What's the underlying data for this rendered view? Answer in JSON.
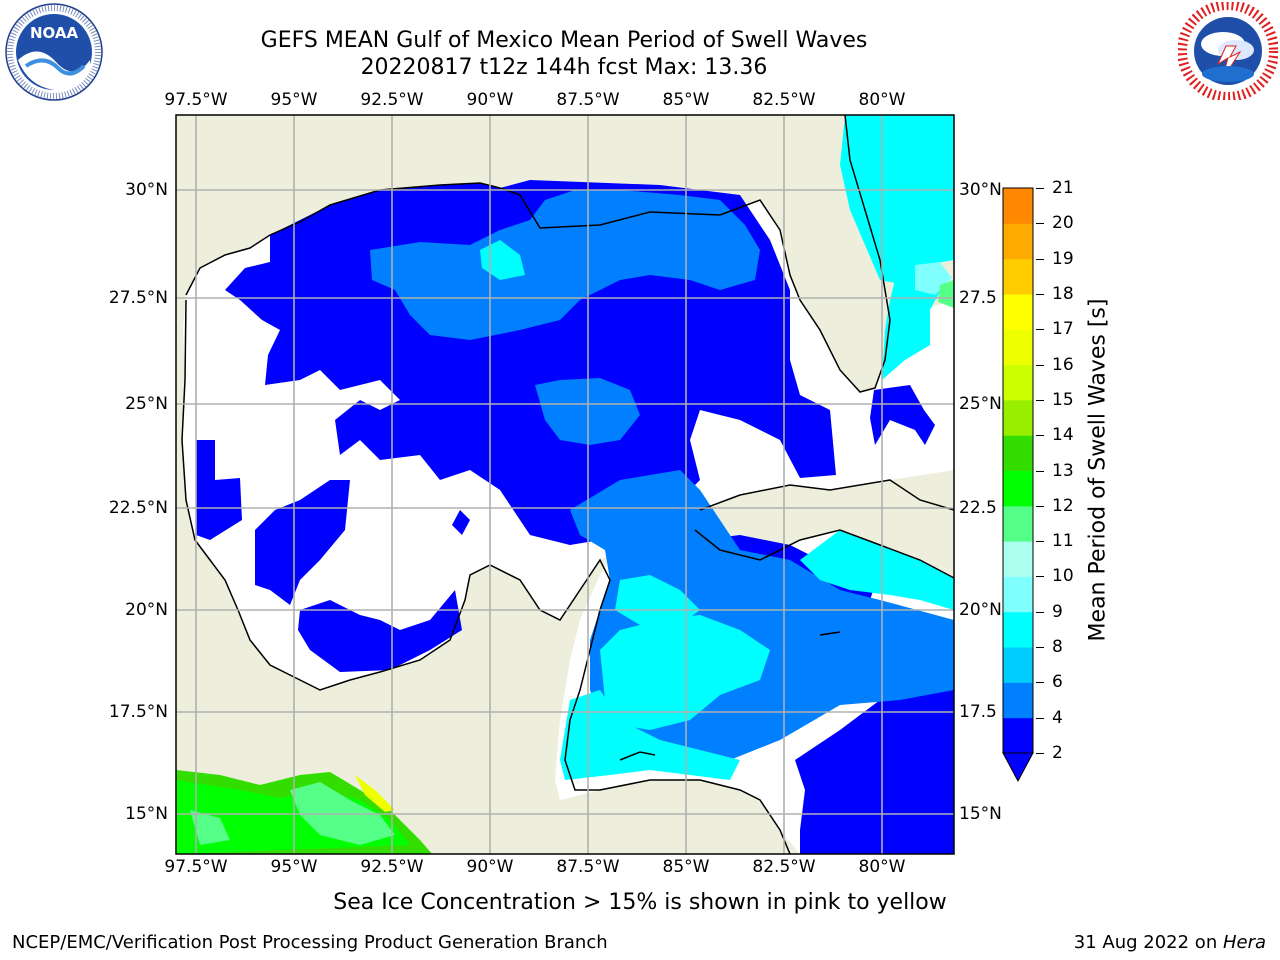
{
  "header": {
    "title_line1": "GEFS MEAN Gulf of Mexico Mean Period of Swell Waves",
    "title_line2": "20220817 t12z 144h fcst   Max: 13.36"
  },
  "logos": {
    "left": {
      "name": "noaa-logo",
      "center_text": "NOAA",
      "ring_text": "NATIONAL OCEANIC AND ATMOSPHERIC ADMINISTRATION · U.S. DEPARTMENT OF COMMERCE"
    },
    "right": {
      "name": "nws-logo",
      "ring_text": "NATIONAL WEATHER SERVICE"
    }
  },
  "map": {
    "lon_ticks": [
      "97.5°W",
      "95°W",
      "92.5°W",
      "90°W",
      "87.5°W",
      "85°W",
      "82.5°W",
      "80°W"
    ],
    "lat_ticks_left": [
      "30°N",
      "27.5°N",
      "25°N",
      "22.5°N",
      "20°N",
      "17.5°N",
      "15°N"
    ],
    "lat_ticks_right": [
      "30°N",
      "27.5",
      "25°N",
      "22.5",
      "20°N",
      "17.5",
      "15°N"
    ]
  },
  "colorbar": {
    "label": "Mean Period of Swell Waves [s]",
    "ticks": [
      "2",
      "4",
      "6",
      "8",
      "9",
      "10",
      "11",
      "12",
      "13",
      "14",
      "15",
      "16",
      "17",
      "18",
      "19",
      "20",
      "21"
    ],
    "colors": [
      "#0000ff",
      "#0080ff",
      "#00ccff",
      "#00ffff",
      "#80ffff",
      "#aaffee",
      "#55ff88",
      "#00ff00",
      "#33dd00",
      "#99ee00",
      "#ccff00",
      "#eeff00",
      "#ffff00",
      "#ffcc00",
      "#ffaa00",
      "#ff8800",
      "#ff5500",
      "#ff2200",
      "#ff0000"
    ]
  },
  "note": "Sea Ice Concentration > 15% is shown in pink to yellow",
  "footer": {
    "left": "NCEP/EMC/Verification Post Processing Product Generation Branch",
    "right_date": "31 Aug 2022 on ",
    "right_host": "Hera"
  }
}
